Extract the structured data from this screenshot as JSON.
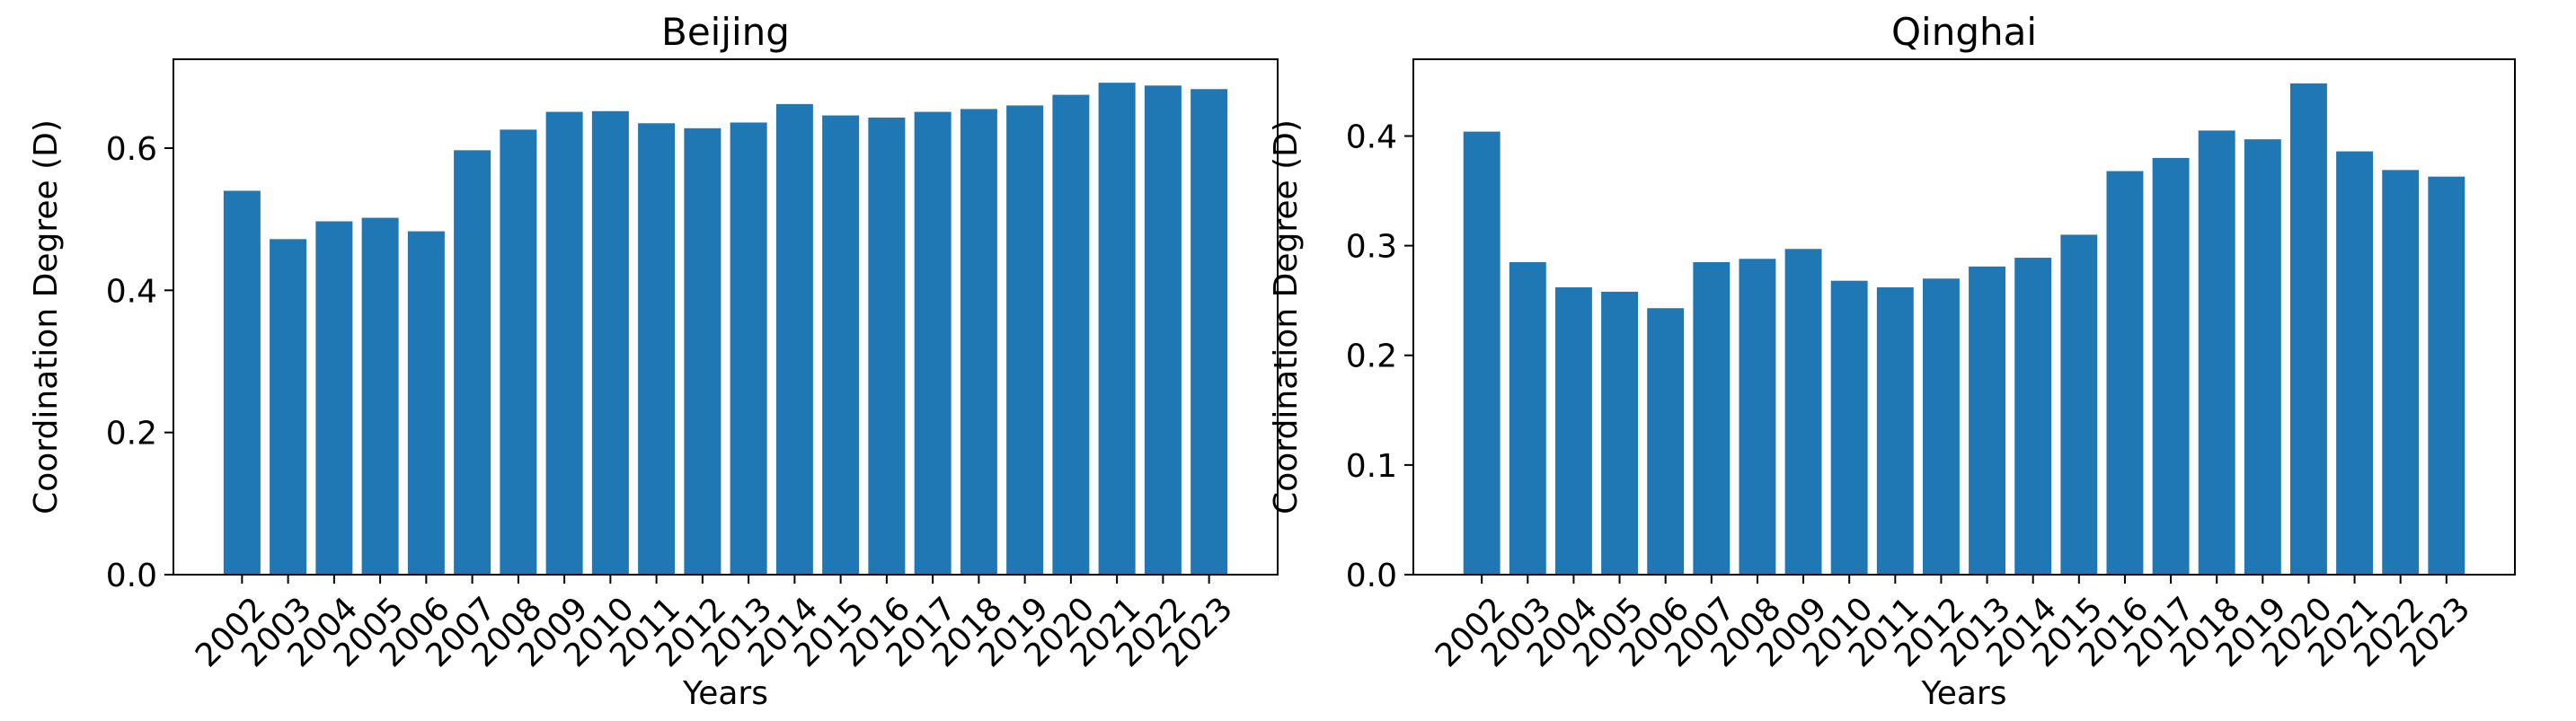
{
  "colors": {
    "bar": "#1f77b4",
    "axis": "#000000",
    "background": "#ffffff"
  },
  "chart_data": [
    {
      "type": "bar",
      "title": "Beijing",
      "xlabel": "Years",
      "ylabel": "Coordination Degree (D)",
      "categories": [
        "2002",
        "2003",
        "2004",
        "2005",
        "2006",
        "2007",
        "2008",
        "2009",
        "2010",
        "2011",
        "2012",
        "2013",
        "2014",
        "2015",
        "2016",
        "2017",
        "2018",
        "2019",
        "2020",
        "2021",
        "2022",
        "2023"
      ],
      "values": [
        0.54,
        0.472,
        0.497,
        0.502,
        0.483,
        0.597,
        0.626,
        0.651,
        0.652,
        0.635,
        0.628,
        0.636,
        0.662,
        0.646,
        0.643,
        0.651,
        0.655,
        0.66,
        0.675,
        0.692,
        0.688,
        0.683
      ],
      "ylim": [
        0,
        0.725
      ],
      "yticks": [
        0.0,
        0.2,
        0.4,
        0.6
      ],
      "ytick_labels": [
        "0.0",
        "0.2",
        "0.4",
        "0.6"
      ],
      "grid": false,
      "legend": "none"
    },
    {
      "type": "bar",
      "title": "Qinghai",
      "xlabel": "Years",
      "ylabel": "Coordination Degree (D)",
      "categories": [
        "2002",
        "2003",
        "2004",
        "2005",
        "2006",
        "2007",
        "2008",
        "2009",
        "2010",
        "2011",
        "2012",
        "2013",
        "2014",
        "2015",
        "2016",
        "2017",
        "2018",
        "2019",
        "2020",
        "2021",
        "2022",
        "2023"
      ],
      "values": [
        0.404,
        0.285,
        0.262,
        0.258,
        0.243,
        0.285,
        0.288,
        0.297,
        0.268,
        0.262,
        0.27,
        0.281,
        0.289,
        0.31,
        0.368,
        0.38,
        0.405,
        0.397,
        0.448,
        0.386,
        0.369,
        0.363
      ],
      "ylim": [
        0,
        0.47
      ],
      "yticks": [
        0.0,
        0.1,
        0.2,
        0.3,
        0.4
      ],
      "ytick_labels": [
        "0.0",
        "0.1",
        "0.2",
        "0.3",
        "0.4"
      ],
      "grid": false,
      "legend": "none"
    }
  ]
}
